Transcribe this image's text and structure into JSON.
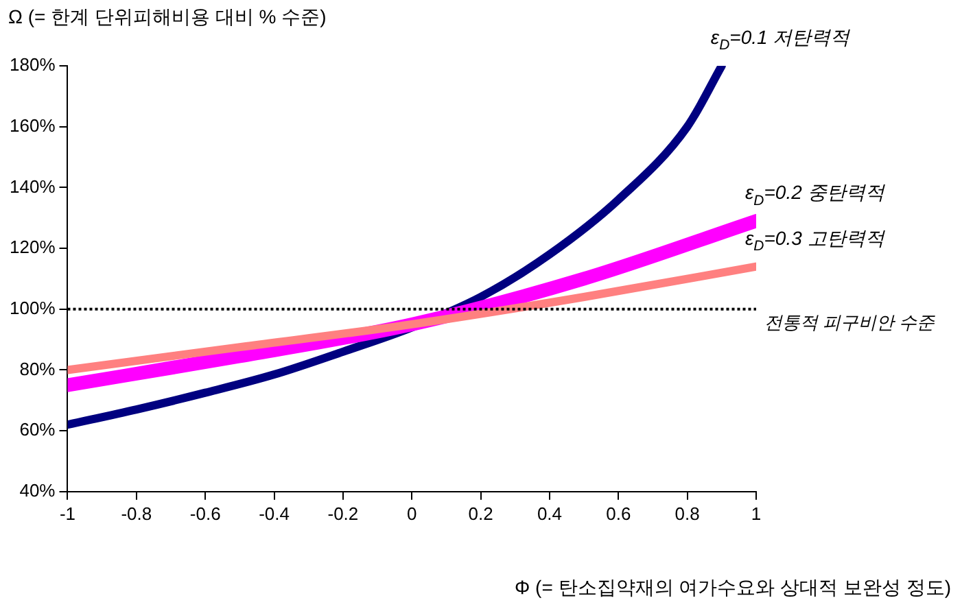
{
  "chart_data": {
    "type": "line",
    "xlabel": "Φ (= 탄소집약재의 여가수요와 상대적  보완성 정도)",
    "ylabel": "Ω (= 한계 단위피해비용 대비 % 수준)",
    "xlim": [
      -1,
      1
    ],
    "xticks": [
      -1,
      -0.8,
      -0.6,
      -0.4,
      -0.2,
      0,
      0.2,
      0.4,
      0.6,
      0.8,
      1
    ],
    "ylim": [
      40,
      180
    ],
    "yticks": [
      {
        "value": 40,
        "label": "40%"
      },
      {
        "value": 60,
        "label": "60%"
      },
      {
        "value": 80,
        "label": "80%"
      },
      {
        "value": 100,
        "label": "100%"
      },
      {
        "value": 120,
        "label": "120%"
      },
      {
        "value": 140,
        "label": "140%"
      },
      {
        "value": 160,
        "label": "160%"
      },
      {
        "value": 180,
        "label": "180%"
      }
    ],
    "series": [
      {
        "name": "ε$_{D}$=0.1 저탄력적",
        "color": "#000080",
        "x": [
          -1,
          -0.8,
          -0.6,
          -0.4,
          -0.2,
          0,
          0.2,
          0.4,
          0.6,
          0.8,
          0.9
        ],
        "values": [
          62,
          67,
          72.5,
          78.5,
          86,
          94,
          104,
          118,
          136,
          160,
          180
        ]
      },
      {
        "name": "ε$_{D}$=0.2 중탄력적",
        "color": "#ff00ff",
        "x": [
          -1,
          -0.5,
          0,
          0.5,
          1
        ],
        "values": [
          75,
          84.5,
          95,
          110,
          129
        ]
      },
      {
        "name": "ε$_{D}$=0.3 고탄력적",
        "color": "#ff8080",
        "x": [
          -1,
          -0.5,
          0,
          0.5,
          1
        ],
        "values": [
          80,
          87.5,
          95,
          104,
          114
        ]
      }
    ],
    "ref_lines": [
      {
        "axis": "y",
        "value": 100,
        "label": "전통적 피구비안 수준",
        "color": "#000000",
        "line_style": "dotted"
      }
    ]
  }
}
